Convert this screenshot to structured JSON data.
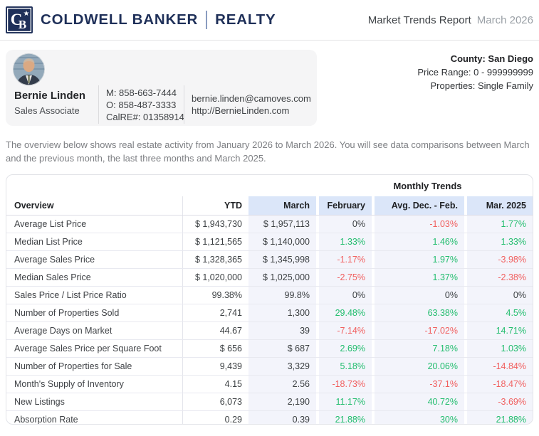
{
  "header": {
    "brand_name": "COLDWELL BANKER",
    "brand_division": "REALTY",
    "emblem": {
      "letter_c": "C",
      "letter_b": "B",
      "star": "★"
    },
    "report_title": "Market Trends Report",
    "report_period": "March 2026"
  },
  "agent": {
    "name": "Bernie Linden",
    "title": "Sales Associate",
    "phone_mobile": "M: 858-663-7444",
    "phone_office": "O: 858-487-3333",
    "license": "CalRE#: 01358914",
    "email": "bernie.linden@camoves.com",
    "website": "http://BernieLinden.com"
  },
  "filters": {
    "county": "County: San Diego",
    "price_range": "Price Range: 0 - 999999999",
    "properties": "Properties: Single Family"
  },
  "intro": "The overview below shows real estate activity from January 2026 to March 2026. You will see data comparisons between March and the previous month, the last three months and March 2025.",
  "table": {
    "group_header": "Monthly Trends",
    "columns": [
      "Overview",
      "YTD",
      "March",
      "February",
      "Avg. Dec. - Feb.",
      "Mar. 2025"
    ],
    "rows": [
      {
        "label": "Average List Price",
        "ytd": "$ 1,943,730",
        "march": "$ 1,957,113",
        "february": "0%",
        "avg_dec_feb": "-1.03%",
        "mar_2025": "1.77%"
      },
      {
        "label": "Median List Price",
        "ytd": "$ 1,121,565",
        "march": "$ 1,140,000",
        "february": "1.33%",
        "avg_dec_feb": "1.46%",
        "mar_2025": "1.33%"
      },
      {
        "label": "Average Sales Price",
        "ytd": "$ 1,328,365",
        "march": "$ 1,345,998",
        "february": "-1.17%",
        "avg_dec_feb": "1.97%",
        "mar_2025": "-3.98%"
      },
      {
        "label": "Median Sales Price",
        "ytd": "$ 1,020,000",
        "march": "$ 1,025,000",
        "february": "-2.75%",
        "avg_dec_feb": "1.37%",
        "mar_2025": "-2.38%"
      },
      {
        "label": "Sales Price / List Price Ratio",
        "ytd": "99.38%",
        "march": "99.8%",
        "february": "0%",
        "avg_dec_feb": "0%",
        "mar_2025": "0%"
      },
      {
        "label": "Number of Properties Sold",
        "ytd": "2,741",
        "march": "1,300",
        "february": "29.48%",
        "avg_dec_feb": "63.38%",
        "mar_2025": "4.5%"
      },
      {
        "label": "Average Days on Market",
        "ytd": "44.67",
        "march": "39",
        "february": "-7.14%",
        "avg_dec_feb": "-17.02%",
        "mar_2025": "14.71%"
      },
      {
        "label": "Average Sales Price per Square Foot",
        "ytd": "$ 656",
        "march": "$ 687",
        "february": "2.69%",
        "avg_dec_feb": "7.18%",
        "mar_2025": "1.03%"
      },
      {
        "label": "Number of Properties for Sale",
        "ytd": "9,439",
        "march": "3,329",
        "february": "5.18%",
        "avg_dec_feb": "20.06%",
        "mar_2025": "-14.84%"
      },
      {
        "label": "Month's Supply of Inventory",
        "ytd": "4.15",
        "march": "2.56",
        "february": "-18.73%",
        "avg_dec_feb": "-37.1%",
        "mar_2025": "-18.47%"
      },
      {
        "label": "New Listings",
        "ytd": "6,073",
        "march": "2,190",
        "february": "11.17%",
        "avg_dec_feb": "40.72%",
        "mar_2025": "-3.69%"
      },
      {
        "label": "Absorption Rate",
        "ytd": "0.29",
        "march": "0.39",
        "february": "21.88%",
        "avg_dec_feb": "30%",
        "mar_2025": "21.88%"
      }
    ]
  },
  "colors": {
    "brand_navy": "#1f3059",
    "positive_green": "#22bd6e",
    "negative_red": "#f15f5f",
    "neutral_value": "#3c4043",
    "monthly_header_bg": "#dbe6f9",
    "monthly_column_bg": "#f3f4fb"
  }
}
